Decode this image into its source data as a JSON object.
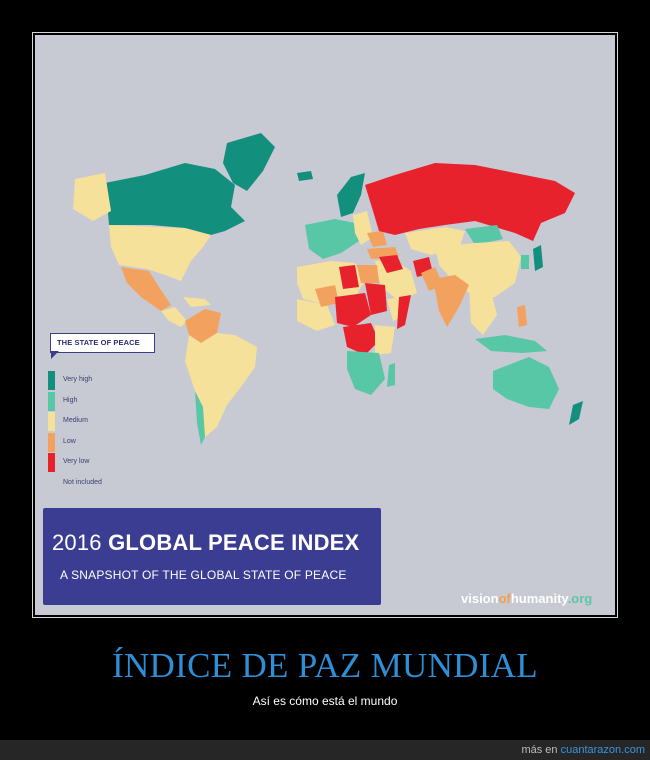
{
  "colors": {
    "very_high": "#138f7e",
    "high": "#58c7a6",
    "medium": "#f6e19a",
    "low": "#f3a15f",
    "very_low": "#e8222d",
    "not_included": "#c7c9d3",
    "title_box": "#3b3d92",
    "headline": "#2f8fd6"
  },
  "legend": {
    "title": "THE STATE OF PEACE",
    "items": [
      {
        "label": "Very high",
        "color": "#138f7e"
      },
      {
        "label": "High",
        "color": "#58c7a6"
      },
      {
        "label": "Medium",
        "color": "#f6e19a"
      },
      {
        "label": "Low",
        "color": "#f3a15f"
      },
      {
        "label": "Very low",
        "color": "#e8222d"
      },
      {
        "label": "Not included",
        "color": "#c7c9d3"
      }
    ]
  },
  "title_box": {
    "year": "2016",
    "title": "GLOBAL PEACE INDEX",
    "subtitle": "A SNAPSHOT OF THE GLOBAL STATE OF PEACE"
  },
  "brand": {
    "part1": "vision",
    "part2": "of",
    "part3": "humanity",
    "part4": ".org"
  },
  "headline": "ÍNDICE DE PAZ MUNDIAL",
  "subline": "Así es cómo está el mundo",
  "footer": {
    "prefix": "más en",
    "link": "cuantarazon.com"
  }
}
